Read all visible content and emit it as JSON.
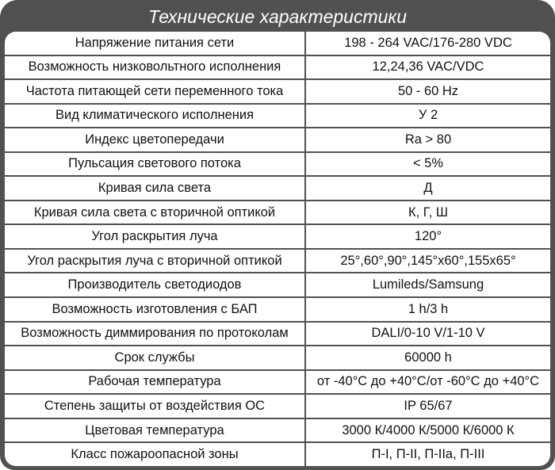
{
  "title": "Технические характеристики",
  "rows": [
    {
      "param": "Напряжение питания сети",
      "value": "198 - 264 VAC/176-280 VDC"
    },
    {
      "param": "Возможность низковольтного исполнения",
      "value": "12,24,36  VAC/VDC"
    },
    {
      "param": "Частота питающей сети переменного тока",
      "value": "50 - 60 Hz"
    },
    {
      "param": "Вид климатического исполнения",
      "value": "У 2"
    },
    {
      "param": "Индекс цветопередачи",
      "value": "Ra > 80"
    },
    {
      "param": "Пульсация светового потока",
      "value": "< 5%"
    },
    {
      "param": "Кривая сила света",
      "value": "Д"
    },
    {
      "param": "Кривая сила света с вторичной оптикой",
      "value": "К, Г, Ш"
    },
    {
      "param": "Угол раскрытия луча",
      "value": "120°"
    },
    {
      "param": "Угол раскрытия луча с вторичной оптикой",
      "value": "25°,60°,90°,145°x60°,155x65°"
    },
    {
      "param": "Производитель светодиодов",
      "value": "Lumileds/Samsung"
    },
    {
      "param": "Возможность изготовления с БАП",
      "value": "1 h/3 h"
    },
    {
      "param": "Возможность диммирования по протоколам",
      "value": "DALI/0-10 V/1-10 V"
    },
    {
      "param": "Срок службы",
      "value": "60000 h"
    },
    {
      "param": "Рабочая температура",
      "value": "от -40°C до +40°C/от -60°C до +40°C"
    },
    {
      "param": "Степень защиты от воздействия ОС",
      "value": "IP 65/67"
    },
    {
      "param": "Цветовая температура",
      "value": "3000 К/4000 К/5000 К/6000 К"
    },
    {
      "param": "Класс пожароопасной зоны",
      "value": "П-I, П-II, П-IIa, П-III"
    }
  ]
}
